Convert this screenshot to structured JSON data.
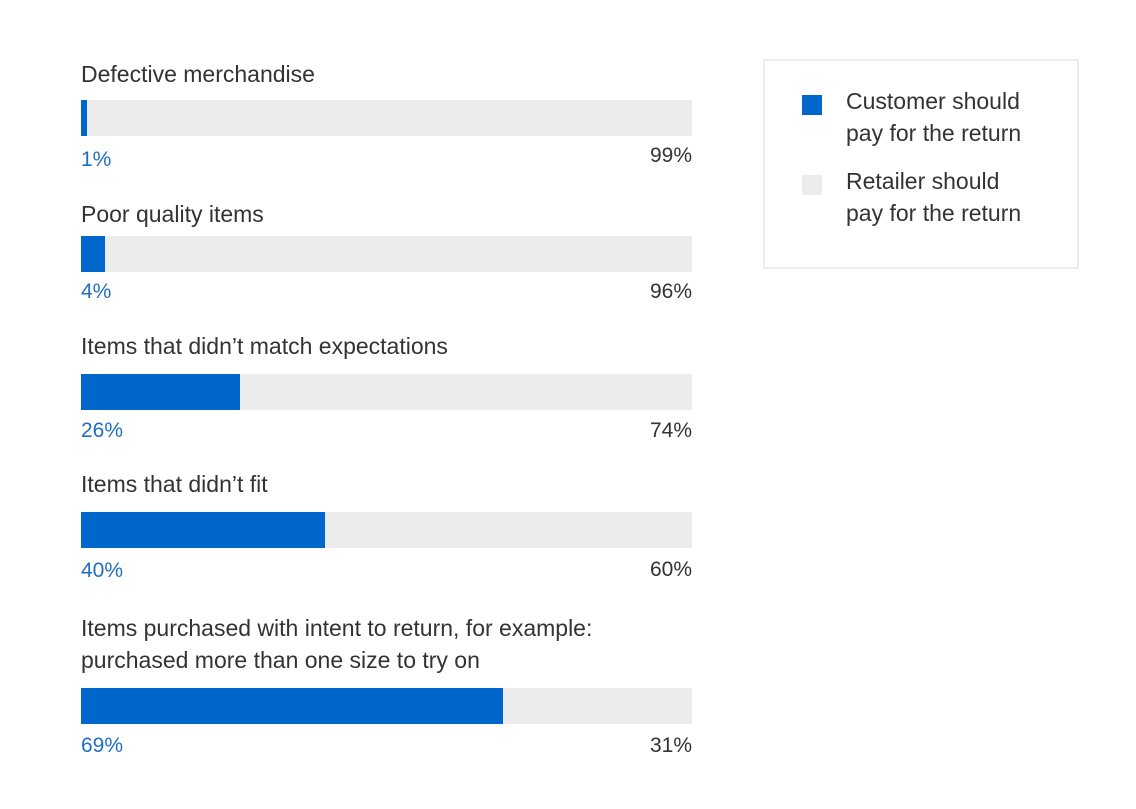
{
  "colors": {
    "customer": "#0066cc",
    "retailer": "#ececec",
    "customer_text": "#1f6fbf",
    "text": "#333333"
  },
  "legend": {
    "customer": "Customer should\npay for the return",
    "retailer": "Retailer should\npay for the return"
  },
  "chart_data": {
    "type": "bar",
    "orientation": "horizontal",
    "stacked": true,
    "categories": [
      "Defective merchandise",
      "Poor quality items",
      "Items that didn’t match expectations",
      "Items that didn’t fit",
      "Items purchased with intent to return, for example:\npurchased more than one size to try on"
    ],
    "series": [
      {
        "name": "Customer should pay for the return",
        "values": [
          1,
          4,
          26,
          40,
          69
        ],
        "labels": [
          "1%",
          "4%",
          "26%",
          "40%",
          "69%"
        ]
      },
      {
        "name": "Retailer should pay for the return",
        "values": [
          99,
          96,
          74,
          60,
          31
        ],
        "labels": [
          "99%",
          "96%",
          "74%",
          "60%",
          "31%"
        ]
      }
    ],
    "xlim": [
      0,
      100
    ],
    "grid": false,
    "legend_position": "top-right"
  }
}
